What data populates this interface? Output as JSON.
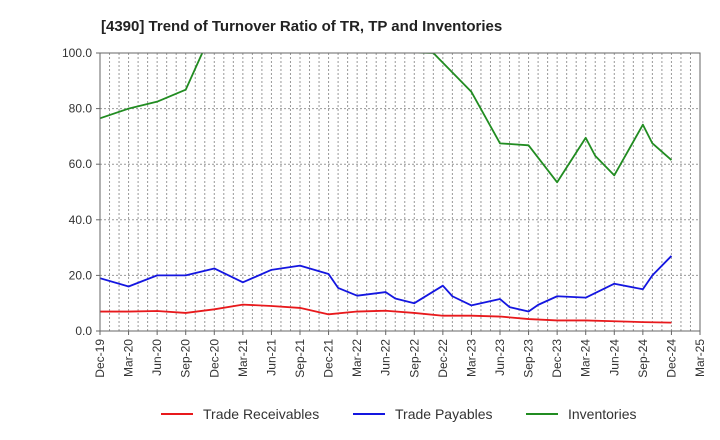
{
  "chart_data": {
    "type": "line",
    "title": "[4390]  Trend of Turnover Ratio of TR, TP and Inventories",
    "xlabel": "",
    "ylabel": "",
    "ylim": [
      0,
      100
    ],
    "yticks": [
      "0.0",
      "20.0",
      "40.0",
      "60.0",
      "80.0",
      "100.0"
    ],
    "xticks": [
      "Dec-19",
      "Mar-20",
      "Jun-20",
      "Sep-20",
      "Dec-20",
      "Mar-21",
      "Jun-21",
      "Sep-21",
      "Dec-21",
      "Mar-22",
      "Jun-22",
      "Sep-22",
      "Dec-22",
      "Mar-23",
      "Jun-23",
      "Sep-23",
      "Dec-23",
      "Mar-24",
      "Jun-24",
      "Sep-24",
      "Dec-24",
      "Mar-25"
    ],
    "grid": true,
    "legend_position": "bottom",
    "x": [
      "Dec-19",
      "Jan-20",
      "Feb-20",
      "Mar-20",
      "Apr-20",
      "May-20",
      "Jun-20",
      "Jul-20",
      "Aug-20",
      "Sep-20",
      "Oct-20",
      "Nov-20",
      "Dec-20",
      "Jan-21",
      "Feb-21",
      "Mar-21",
      "Apr-21",
      "May-21",
      "Jun-21",
      "Jul-21",
      "Aug-21",
      "Sep-21",
      "Oct-21",
      "Nov-21",
      "Dec-21",
      "Jan-22",
      "Feb-22",
      "Mar-22",
      "Apr-22",
      "May-22",
      "Jun-22",
      "Jul-22",
      "Aug-22",
      "Sep-22",
      "Oct-22",
      "Nov-22",
      "Dec-22",
      "Jan-23",
      "Feb-23",
      "Mar-23",
      "Apr-23",
      "May-23",
      "Jun-23",
      "Jul-23",
      "Aug-23",
      "Sep-23",
      "Oct-23",
      "Nov-23",
      "Dec-23",
      "Jan-24",
      "Feb-24",
      "Mar-24",
      "Apr-24",
      "May-24",
      "Jun-24",
      "Jul-24",
      "Aug-24",
      "Sep-24",
      "Oct-24",
      "Nov-24",
      "Dec-24"
    ],
    "series": [
      {
        "name": "Trade Receivables",
        "color": "#e8191c",
        "values": [
          7.0,
          null,
          null,
          7.0,
          null,
          null,
          7.2,
          null,
          null,
          6.5,
          null,
          null,
          7.8,
          null,
          null,
          9.5,
          null,
          null,
          9.0,
          null,
          null,
          8.3,
          null,
          null,
          6.0,
          null,
          null,
          7.0,
          null,
          null,
          7.3,
          null,
          null,
          6.5,
          null,
          null,
          5.5,
          null,
          null,
          5.5,
          null,
          null,
          5.2,
          null,
          null,
          4.3,
          null,
          null,
          3.8,
          null,
          null,
          3.8,
          null,
          null,
          3.5,
          null,
          null,
          3.2,
          null,
          null,
          3.0
        ]
      },
      {
        "name": "Trade Payables",
        "color": "#1416e0",
        "values": [
          19.0,
          null,
          null,
          16.0,
          null,
          null,
          20.0,
          null,
          null,
          20.0,
          null,
          null,
          22.5,
          null,
          null,
          17.5,
          null,
          null,
          22.0,
          null,
          null,
          23.5,
          null,
          null,
          20.5,
          15.5,
          null,
          12.7,
          null,
          null,
          14.0,
          11.7,
          null,
          10.0,
          null,
          null,
          16.3,
          12.5,
          null,
          9.2,
          null,
          null,
          11.5,
          8.6,
          null,
          7.0,
          9.4,
          null,
          12.5,
          null,
          null,
          12.0,
          null,
          null,
          17.0,
          null,
          null,
          15.0,
          20.0,
          null,
          27.0
        ]
      },
      {
        "name": "Inventories",
        "color": "#218c21",
        "values": [
          76.5,
          null,
          null,
          80.0,
          null,
          null,
          82.5,
          null,
          null,
          86.8,
          null,
          102.0,
          null,
          null,
          null,
          null,
          null,
          null,
          null,
          null,
          null,
          null,
          null,
          null,
          null,
          null,
          null,
          null,
          null,
          null,
          null,
          null,
          null,
          null,
          null,
          100.0,
          null,
          null,
          null,
          86.0,
          null,
          null,
          67.5,
          null,
          null,
          66.8,
          null,
          null,
          53.5,
          null,
          null,
          69.5,
          63.0,
          null,
          56.0,
          null,
          null,
          74.2,
          67.5,
          null,
          61.5
        ]
      }
    ]
  }
}
